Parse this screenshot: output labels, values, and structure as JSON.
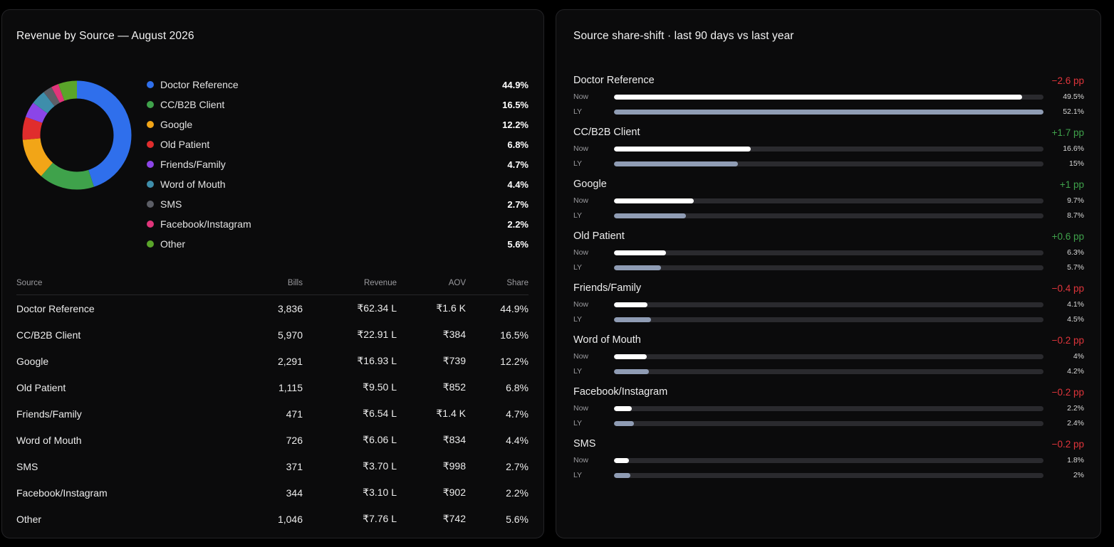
{
  "left_card": {
    "title": "Revenue by Source — August 2026",
    "legend": [
      {
        "label": "Doctor Reference",
        "value": "44.9%",
        "share": 44.9,
        "color": "#2f6fec"
      },
      {
        "label": "CC/B2B Client",
        "value": "16.5%",
        "share": 16.5,
        "color": "#3fa24b"
      },
      {
        "label": "Google",
        "value": "12.2%",
        "share": 12.2,
        "color": "#f2a517"
      },
      {
        "label": "Old Patient",
        "value": "6.8%",
        "share": 6.8,
        "color": "#e02d2d"
      },
      {
        "label": "Friends/Family",
        "value": "4.7%",
        "share": 4.7,
        "color": "#8b45e8"
      },
      {
        "label": "Word of Mouth",
        "value": "4.4%",
        "share": 4.4,
        "color": "#3e8eab"
      },
      {
        "label": "SMS",
        "value": "2.7%",
        "share": 2.7,
        "color": "#5c5e66"
      },
      {
        "label": "Facebook/Instagram",
        "value": "2.2%",
        "share": 2.2,
        "color": "#e0357a"
      },
      {
        "label": "Other",
        "value": "5.6%",
        "share": 5.6,
        "color": "#5aa52a"
      }
    ],
    "table": {
      "headers": [
        "Source",
        "Bills",
        "Revenue",
        "AOV",
        "Share"
      ],
      "rows": [
        [
          "Doctor Reference",
          "3,836",
          "₹62.34 L",
          "₹1.6 K",
          "44.9%"
        ],
        [
          "CC/B2B Client",
          "5,970",
          "₹22.91 L",
          "₹384",
          "16.5%"
        ],
        [
          "Google",
          "2,291",
          "₹16.93 L",
          "₹739",
          "12.2%"
        ],
        [
          "Old Patient",
          "1,115",
          "₹9.50 L",
          "₹852",
          "6.8%"
        ],
        [
          "Friends/Family",
          "471",
          "₹6.54 L",
          "₹1.4 K",
          "4.7%"
        ],
        [
          "Word of Mouth",
          "726",
          "₹6.06 L",
          "₹834",
          "4.4%"
        ],
        [
          "SMS",
          "371",
          "₹3.70 L",
          "₹998",
          "2.7%"
        ],
        [
          "Facebook/Instagram",
          "344",
          "₹3.10 L",
          "₹902",
          "2.2%"
        ],
        [
          "Other",
          "1,046",
          "₹7.76 L",
          "₹742",
          "5.6%"
        ]
      ]
    }
  },
  "right_card": {
    "title": "Source share-shift · last 90 days vs last year",
    "now_tag": "Now",
    "ly_tag": "LY",
    "scale_max": 52.1,
    "items": [
      {
        "name": "Doctor Reference",
        "delta": "−2.6 pp",
        "trend": "neg",
        "now": 49.5,
        "now_label": "49.5%",
        "ly": 52.1,
        "ly_label": "52.1%"
      },
      {
        "name": "CC/B2B Client",
        "delta": "+1.7 pp",
        "trend": "pos",
        "now": 16.6,
        "now_label": "16.6%",
        "ly": 15,
        "ly_label": "15%"
      },
      {
        "name": "Google",
        "delta": "+1 pp",
        "trend": "pos",
        "now": 9.7,
        "now_label": "9.7%",
        "ly": 8.7,
        "ly_label": "8.7%"
      },
      {
        "name": "Old Patient",
        "delta": "+0.6 pp",
        "trend": "pos",
        "now": 6.3,
        "now_label": "6.3%",
        "ly": 5.7,
        "ly_label": "5.7%"
      },
      {
        "name": "Friends/Family",
        "delta": "−0.4 pp",
        "trend": "neg",
        "now": 4.1,
        "now_label": "4.1%",
        "ly": 4.5,
        "ly_label": "4.5%"
      },
      {
        "name": "Word of Mouth",
        "delta": "−0.2 pp",
        "trend": "neg",
        "now": 4,
        "now_label": "4%",
        "ly": 4.2,
        "ly_label": "4.2%"
      },
      {
        "name": "Facebook/Instagram",
        "delta": "−0.2 pp",
        "trend": "neg",
        "now": 2.2,
        "now_label": "2.2%",
        "ly": 2.4,
        "ly_label": "2.4%"
      },
      {
        "name": "SMS",
        "delta": "−0.2 pp",
        "trend": "neg",
        "now": 1.8,
        "now_label": "1.8%",
        "ly": 2,
        "ly_label": "2%"
      }
    ]
  }
}
